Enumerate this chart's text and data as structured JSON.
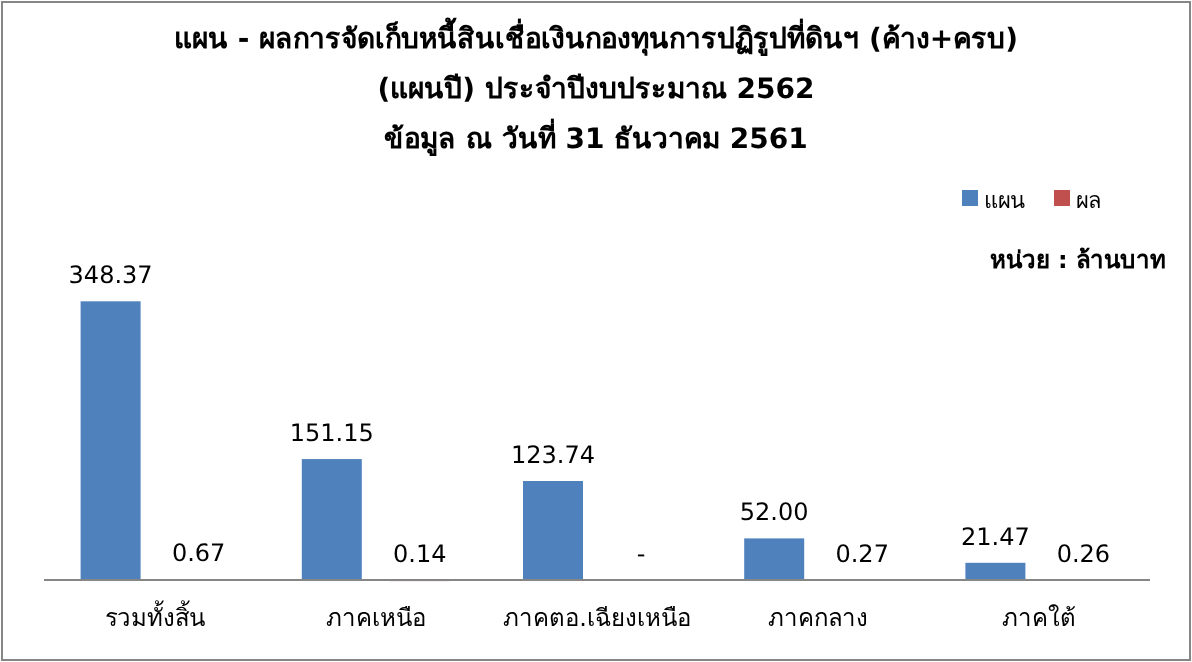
{
  "chart_data": {
    "type": "bar",
    "title": "แผน - ผลการจัดเก็บหนี้สินเชื่อเงินกองทุนการปฏิรูปที่ดินฯ (ค้าง+ครบ)",
    "subtitle": "(แผนปี)  ประจำปีงบประมาณ 2562\nข้อมูล ณ วันที่ 31 ธันวาคม 2561",
    "categories": [
      "รวมทั้งสิ้น",
      "ภาคเหนือ",
      "ภาคตอ.เฉียงเหนือ",
      "ภาคกลาง",
      "ภาคใต้"
    ],
    "series": [
      {
        "name": "แผน",
        "color": "#4f81bd",
        "values": [
          348.37,
          151.15,
          123.74,
          52.0,
          21.47
        ],
        "value_labels": [
          "348.37",
          "151.15",
          "123.74",
          "52.00",
          "21.47"
        ]
      },
      {
        "name": "ผล",
        "color": "#c0504d",
        "values": [
          0.67,
          0.14,
          null,
          0.27,
          0.26
        ],
        "value_labels": [
          "0.67",
          "0.14",
          "-",
          "0.27",
          "0.26"
        ]
      }
    ],
    "annotations": [
      "หน่วย : ล้านบาท"
    ],
    "legend": "top right",
    "grid": false
  }
}
